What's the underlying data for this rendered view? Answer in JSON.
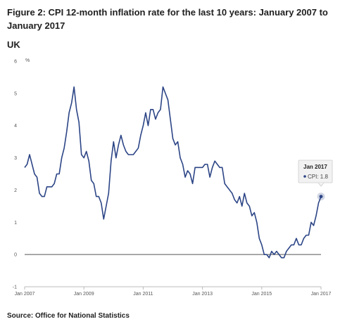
{
  "title": "Figure 2: CPI 12-month inflation rate for the last 10 years: January 2007 to January 2017",
  "subtitle": "UK",
  "source": "Source: Office for National Statistics",
  "colors": {
    "line": "#2c4586",
    "zero_line": "#555555",
    "axis": "#bbbbbb",
    "tooltip_bg": "#f2f2f2"
  },
  "chart_data": {
    "type": "line",
    "ylabel": "%",
    "ylim": [
      -1,
      6
    ],
    "yticks": [
      6,
      5,
      4,
      3,
      2,
      1,
      0,
      -1
    ],
    "xlim": [
      "Jan 2007",
      "Jan 2017"
    ],
    "xtick_labels": [
      "Jan 2007",
      "Jan 2009",
      "Jan 2011",
      "Jan 2013",
      "Jan 2015",
      "Jan 2017"
    ],
    "grid": false,
    "series": [
      {
        "name": "CPI",
        "x_start": "Jan 2007",
        "x_step": "1 month",
        "values": [
          2.7,
          2.8,
          3.1,
          2.8,
          2.5,
          2.4,
          1.9,
          1.8,
          1.8,
          2.1,
          2.1,
          2.1,
          2.2,
          2.5,
          2.5,
          3.0,
          3.3,
          3.8,
          4.4,
          4.7,
          5.2,
          4.5,
          4.1,
          3.1,
          3.0,
          3.2,
          2.9,
          2.3,
          2.2,
          1.8,
          1.8,
          1.6,
          1.1,
          1.5,
          1.9,
          2.9,
          3.5,
          3.0,
          3.4,
          3.7,
          3.4,
          3.2,
          3.1,
          3.1,
          3.1,
          3.2,
          3.3,
          3.7,
          4.0,
          4.4,
          4.0,
          4.5,
          4.5,
          4.2,
          4.4,
          4.5,
          5.2,
          5.0,
          4.8,
          4.2,
          3.6,
          3.4,
          3.5,
          3.0,
          2.8,
          2.4,
          2.6,
          2.5,
          2.2,
          2.7,
          2.7,
          2.7,
          2.7,
          2.8,
          2.8,
          2.4,
          2.7,
          2.9,
          2.8,
          2.7,
          2.7,
          2.2,
          2.1,
          2.0,
          1.9,
          1.7,
          1.6,
          1.8,
          1.5,
          1.9,
          1.6,
          1.5,
          1.2,
          1.3,
          1.0,
          0.5,
          0.3,
          0.0,
          0.0,
          -0.1,
          0.1,
          0.0,
          0.1,
          0.0,
          -0.1,
          -0.1,
          0.1,
          0.2,
          0.3,
          0.3,
          0.5,
          0.3,
          0.3,
          0.5,
          0.6,
          0.6,
          1.0,
          0.9,
          1.2,
          1.6,
          1.8
        ]
      }
    ],
    "highlight": {
      "label": "Jan 2017",
      "series": "CPI",
      "value": 1.8,
      "text": "CPI: 1.8"
    }
  }
}
